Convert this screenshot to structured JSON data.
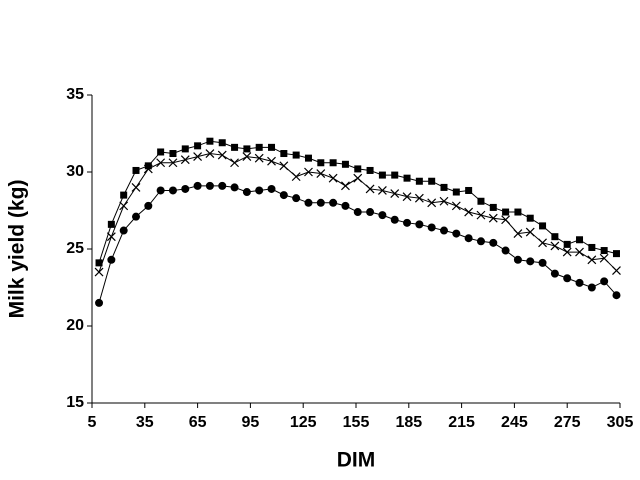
{
  "chart_data": {
    "type": "line",
    "x_label": "DIM",
    "y_label": "Milk yield (kg)",
    "x": [
      9,
      16,
      23,
      30,
      37,
      44,
      51,
      58,
      65,
      72,
      79,
      86,
      93,
      100,
      107,
      114,
      121,
      128,
      135,
      142,
      149,
      156,
      163,
      170,
      177,
      184,
      191,
      198,
      205,
      212,
      219,
      226,
      233,
      240,
      247,
      254,
      261,
      268,
      275,
      282,
      289,
      296,
      303
    ],
    "series": [
      {
        "color": "#000000",
        "marker": "square",
        "values": [
          24.1,
          26.6,
          28.5,
          30.1,
          30.4,
          31.3,
          31.2,
          31.5,
          31.7,
          32.0,
          31.9,
          31.6,
          31.5,
          31.6,
          31.6,
          31.2,
          31.1,
          30.9,
          30.6,
          30.6,
          30.5,
          30.2,
          30.1,
          29.8,
          29.8,
          29.6,
          29.4,
          29.4,
          29.0,
          28.7,
          28.8,
          28.1,
          27.7,
          27.4,
          27.4,
          27.0,
          26.5,
          25.8,
          25.3,
          25.6,
          25.1,
          24.9,
          24.7
        ]
      },
      {
        "color": "#000000",
        "marker": "cross",
        "values": [
          23.5,
          25.8,
          27.8,
          29.0,
          30.2,
          30.6,
          30.6,
          30.8,
          31.0,
          31.2,
          31.1,
          30.6,
          31.0,
          30.9,
          30.7,
          30.4,
          29.7,
          30.0,
          29.9,
          29.6,
          29.1,
          29.6,
          28.9,
          28.8,
          28.6,
          28.4,
          28.3,
          28.0,
          28.1,
          27.8,
          27.4,
          27.2,
          27.0,
          26.9,
          26.0,
          26.1,
          25.4,
          25.2,
          24.8,
          24.8,
          24.3,
          24.4,
          23.6
        ]
      },
      {
        "color": "#000000",
        "marker": "circle",
        "values": [
          21.5,
          24.3,
          26.2,
          27.1,
          27.8,
          28.8,
          28.8,
          28.9,
          29.1,
          29.1,
          29.1,
          29.0,
          28.7,
          28.8,
          28.9,
          28.5,
          28.3,
          28.0,
          28.0,
          28.0,
          27.8,
          27.4,
          27.4,
          27.2,
          26.9,
          26.7,
          26.6,
          26.4,
          26.2,
          26.0,
          25.7,
          25.5,
          25.4,
          24.9,
          24.3,
          24.2,
          24.1,
          23.4,
          23.1,
          22.8,
          22.5,
          22.9,
          22.0
        ]
      }
    ],
    "xlim": [
      5,
      305
    ],
    "xticks": [
      5,
      35,
      65,
      95,
      125,
      155,
      185,
      215,
      245,
      275,
      305
    ],
    "ylim": [
      15,
      35
    ],
    "yticks": [
      15,
      20,
      25,
      30,
      35
    ],
    "grid": false
  }
}
